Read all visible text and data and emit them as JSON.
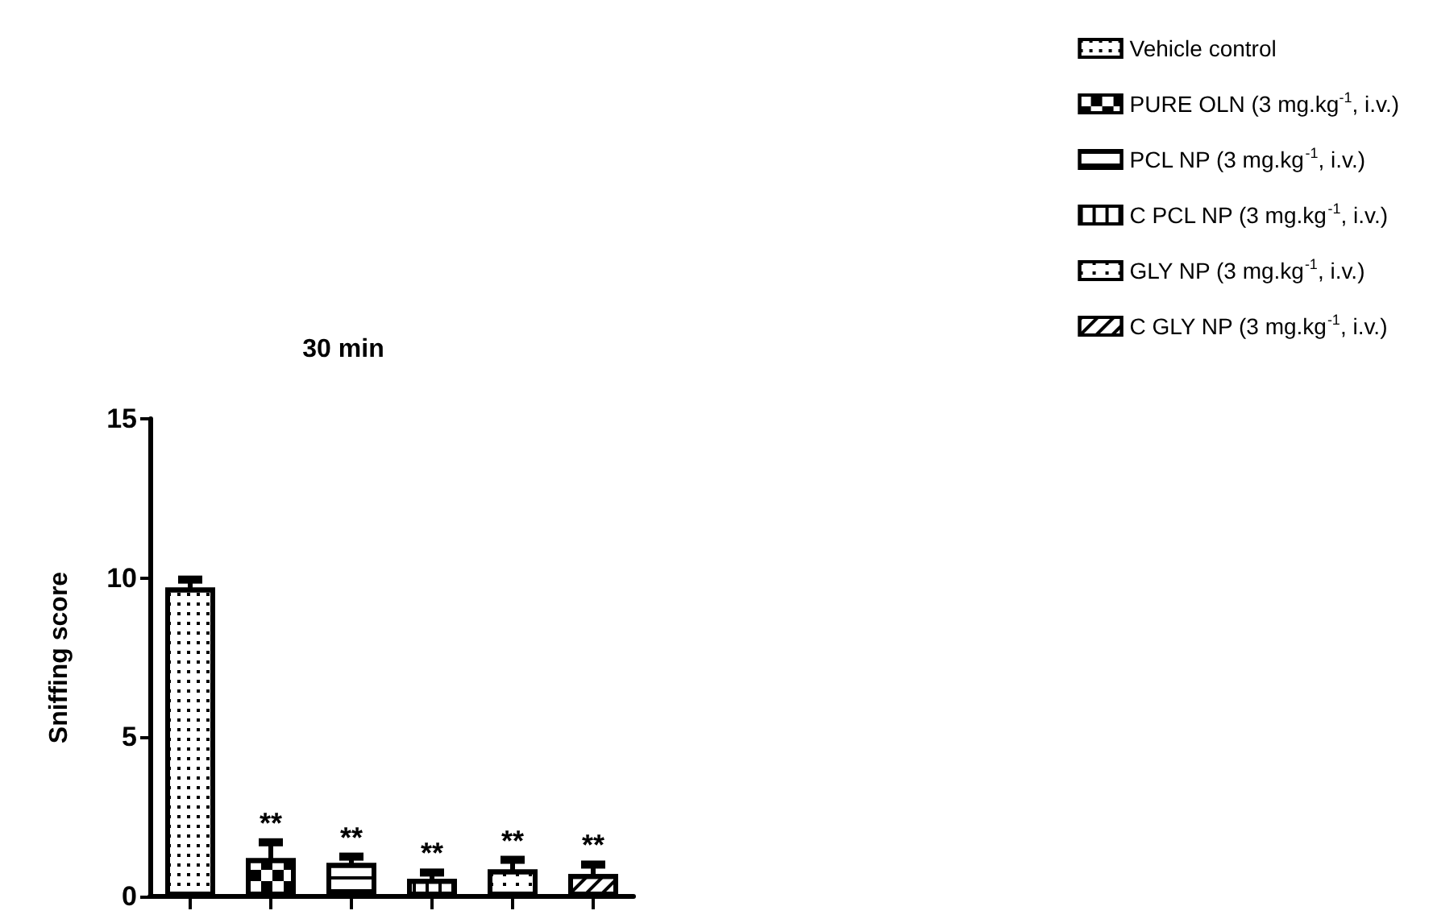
{
  "chart_data": {
    "type": "bar",
    "title": "30 min",
    "ylabel": "Sniffing score",
    "categories": [
      null,
      null,
      null,
      null,
      null,
      null
    ],
    "series": [
      {
        "name": "Vehicle control",
        "color": "#000000",
        "values": [
          9.7,
          null,
          null,
          null,
          null,
          null
        ],
        "errors": [
          0.25,
          null,
          null,
          null,
          null,
          null
        ]
      },
      {
        "name": "PURE OLN (3 mg.kg$^{-1}$, i.v.)",
        "color": "#000000",
        "values": [
          null,
          1.2,
          null,
          null,
          null,
          null
        ],
        "errors": [
          null,
          0.5,
          null,
          null,
          null,
          null
        ],
        "value_labels": [
          null,
          "**",
          null,
          null,
          null,
          null
        ]
      },
      {
        "name": "PCL NP (3 mg.kg$^{-1}$, i.v.)",
        "color": "#000000",
        "values": [
          null,
          null,
          1.05,
          null,
          null,
          null
        ],
        "errors": [
          null,
          null,
          0.2,
          null,
          null,
          null
        ],
        "value_labels": [
          null,
          null,
          "**",
          null,
          null,
          null
        ]
      },
      {
        "name": "C PCL NP (3 mg.kg$^{-1}$, i.v.)",
        "color": "#000000",
        "values": [
          null,
          null,
          null,
          0.55,
          null,
          null
        ],
        "errors": [
          null,
          null,
          null,
          0.2,
          null,
          null
        ],
        "value_labels": [
          null,
          null,
          null,
          "**",
          null,
          null
        ]
      },
      {
        "name": "GLY NP (3 mg.kg$^{-1}$, i.v.)",
        "color": "#000000",
        "values": [
          null,
          null,
          null,
          null,
          0.85,
          null
        ],
        "errors": [
          null,
          null,
          null,
          null,
          0.3,
          null
        ],
        "value_labels": [
          null,
          null,
          null,
          null,
          "**",
          null
        ]
      },
      {
        "name": "C GLY NP (3 mg.kg$^{-1}$, i.v.)",
        "color": "#000000",
        "values": [
          null,
          null,
          null,
          null,
          null,
          0.7
        ],
        "errors": [
          null,
          null,
          null,
          null,
          null,
          0.3
        ],
        "value_labels": [
          null,
          null,
          null,
          null,
          null,
          "**"
        ]
      }
    ],
    "ylim": [
      0,
      15
    ],
    "yticks": [
      0,
      5,
      10,
      15
    ],
    "grid": false,
    "legend": "top right"
  }
}
